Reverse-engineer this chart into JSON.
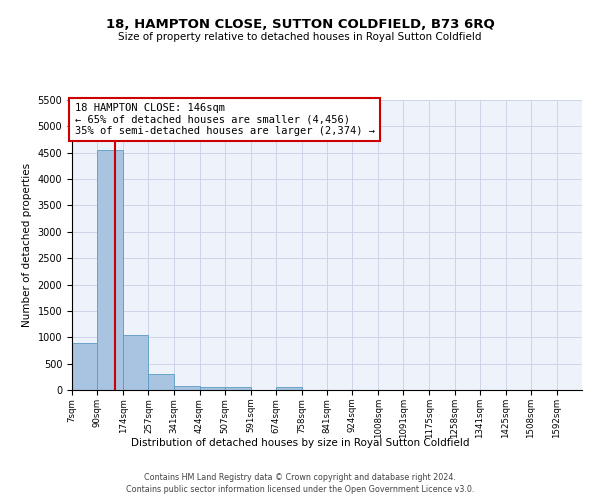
{
  "title1": "18, HAMPTON CLOSE, SUTTON COLDFIELD, B73 6RQ",
  "title2": "Size of property relative to detached houses in Royal Sutton Coldfield",
  "xlabel": "Distribution of detached houses by size in Royal Sutton Coldfield",
  "ylabel": "Number of detached properties",
  "footnote1": "Contains HM Land Registry data © Crown copyright and database right 2024.",
  "footnote2": "Contains public sector information licensed under the Open Government Licence v3.0.",
  "bin_edges": [
    7,
    90,
    174,
    257,
    341,
    424,
    507,
    591,
    674,
    758,
    841,
    924,
    1008,
    1091,
    1175,
    1258,
    1341,
    1425,
    1508,
    1592,
    1675
  ],
  "counts": [
    900,
    4550,
    1050,
    300,
    80,
    60,
    50,
    0,
    60,
    0,
    0,
    0,
    0,
    0,
    0,
    0,
    0,
    0,
    0,
    0
  ],
  "bar_color": "#a8c4e0",
  "bar_edge_color": "#5a9ac5",
  "grid_color": "#cdd5e8",
  "bg_color": "#eef2fa",
  "vline_x": 146,
  "vline_color": "#cc0000",
  "annotation_text": "18 HAMPTON CLOSE: 146sqm\n← 65% of detached houses are smaller (4,456)\n35% of semi-detached houses are larger (2,374) →",
  "annotation_box_color": "#ffffff",
  "annotation_box_edge": "#cc0000",
  "ylim": [
    0,
    5500
  ],
  "yticks": [
    0,
    500,
    1000,
    1500,
    2000,
    2500,
    3000,
    3500,
    4000,
    4500,
    5000,
    5500
  ],
  "tick_labels": [
    "7sqm",
    "90sqm",
    "174sqm",
    "257sqm",
    "341sqm",
    "424sqm",
    "507sqm",
    "591sqm",
    "674sqm",
    "758sqm",
    "841sqm",
    "924sqm",
    "1008sqm",
    "1091sqm",
    "1175sqm",
    "1258sqm",
    "1341sqm",
    "1425sqm",
    "1508sqm",
    "1592sqm"
  ]
}
